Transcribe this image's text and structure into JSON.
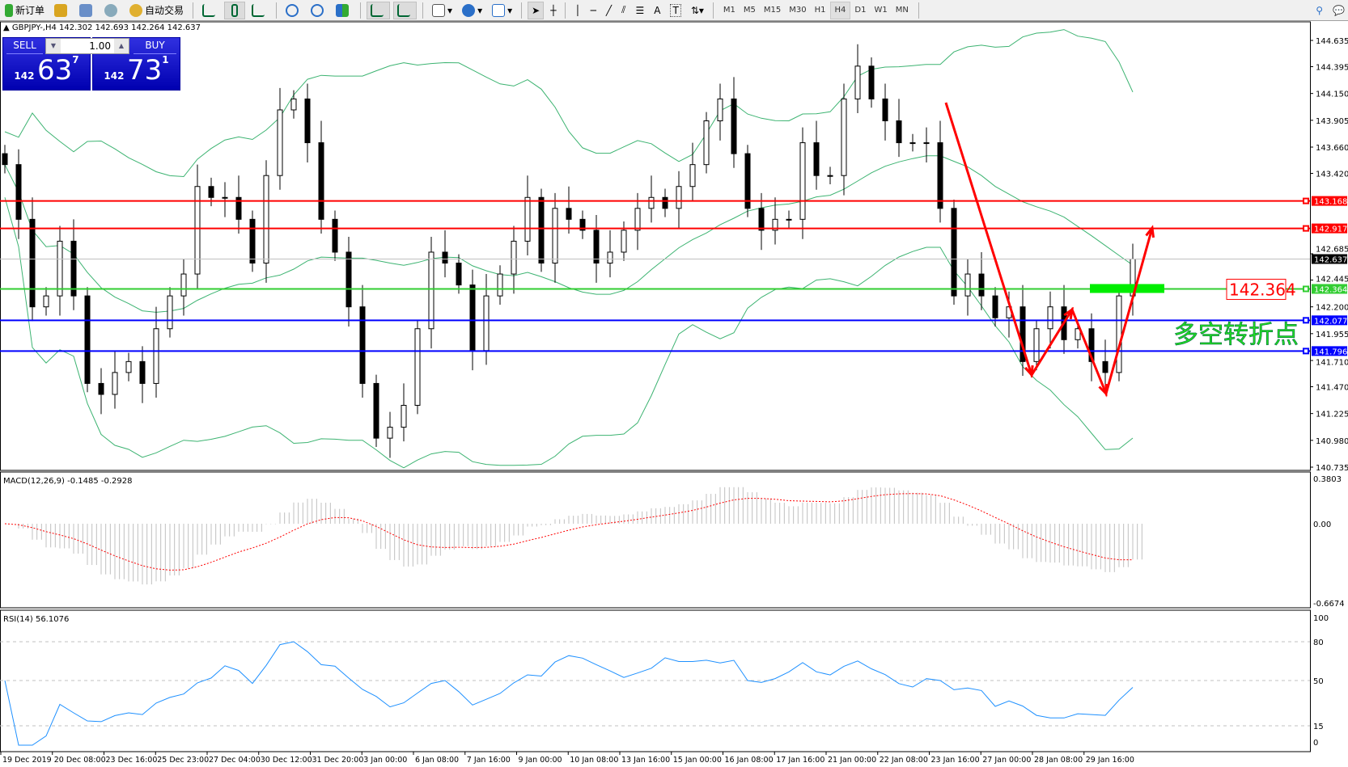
{
  "toolbar": {
    "new_order": "新订单",
    "auto_trading": "自动交易",
    "icons": [
      "new-order-icon",
      "experts-icon",
      "market-watch-icon",
      "signals-icon",
      "auto-trading-icon",
      "bar-chart-icon",
      "candlestick-icon",
      "line-chart-icon",
      "zoom-in-icon",
      "zoom-out-icon",
      "tile-windows-icon",
      "autoscroll-icon",
      "chart-shift-icon",
      "indicators-icon",
      "periods-icon",
      "templates-icon",
      "cursor-icon",
      "crosshair-icon",
      "vertical-line-icon",
      "horizontal-line-icon",
      "trendline-icon",
      "fibonacci-icon",
      "fibo-fan-icon",
      "text-icon",
      "text-label-icon",
      "arrows-icon",
      "search-icon",
      "chat-icon"
    ],
    "text_tool": "A",
    "label_tool": "T",
    "timeframes": [
      "M1",
      "M5",
      "M15",
      "M30",
      "H1",
      "H4",
      "D1",
      "W1",
      "MN"
    ],
    "active_timeframe": "H4"
  },
  "chart": {
    "title": "GBPJPY-,H4  142.302 142.693 142.264 142.637",
    "trade_panel": {
      "sell_label": "SELL",
      "buy_label": "BUY",
      "lot": "1.00",
      "sell_prefix": "142",
      "sell_big": "63",
      "sell_sup": "7",
      "buy_prefix": "142",
      "buy_big": "73",
      "buy_sup": "1"
    },
    "price_ticks": [
      "144.635",
      "144.395",
      "144.150",
      "143.905",
      "143.660",
      "143.420",
      "142.685",
      "142.445",
      "142.200",
      "141.955",
      "141.710",
      "141.470",
      "141.225",
      "140.980",
      "140.735"
    ],
    "levels": [
      {
        "price": "143.168",
        "color": "#ff0000"
      },
      {
        "price": "142.917",
        "color": "#ff0000"
      },
      {
        "price": "142.364",
        "color": "#32cd32"
      },
      {
        "price": "142.077",
        "color": "#0000ff"
      },
      {
        "price": "141.796",
        "color": "#0000ff"
      }
    ],
    "current_price": "142.637",
    "annotation_price": "142.364",
    "annotation_text": "多空转折点",
    "dates": [
      "19 Dec 2019",
      "20 Dec 08:00",
      "23 Dec 16:00",
      "25 Dec 23:00",
      "27 Dec 04:00",
      "30 Dec 12:00",
      "31 Dec 20:00",
      "3 Jan 00:00",
      "6 Jan 08:00",
      "7 Jan 16:00",
      "9 Jan 00:00",
      "10 Jan 08:00",
      "13 Jan 16:00",
      "15 Jan 00:00",
      "16 Jan 08:00",
      "17 Jan 16:00",
      "21 Jan 00:00",
      "22 Jan 08:00",
      "23 Jan 16:00",
      "27 Jan 00:00",
      "28 Jan 08:00",
      "29 Jan 16:00"
    ]
  },
  "macd": {
    "label": "MACD(12,26,9) -0.1485 -0.2928",
    "ticks": [
      "0.3803",
      "0.00",
      "-0.6674"
    ]
  },
  "rsi": {
    "label": "RSI(14) 56.1076",
    "ticks": [
      "100",
      "80",
      "50",
      "15",
      "0"
    ]
  },
  "chart_data": {
    "type": "candlestick",
    "symbol": "GBPJPY-",
    "timeframe": "H4",
    "ylim": [
      140.735,
      144.635
    ],
    "closes": [
      143.5,
      143.0,
      142.2,
      142.3,
      142.8,
      142.3,
      141.5,
      141.4,
      141.6,
      141.7,
      141.5,
      142.0,
      142.3,
      142.5,
      143.3,
      143.2,
      143.2,
      143.0,
      142.6,
      143.4,
      144.0,
      144.1,
      143.7,
      143.0,
      142.7,
      142.2,
      141.5,
      141.0,
      141.1,
      141.3,
      142.0,
      142.7,
      142.6,
      142.4,
      141.8,
      142.3,
      142.5,
      142.8,
      143.2,
      142.6,
      143.1,
      143.0,
      142.9,
      142.6,
      142.7,
      142.9,
      143.1,
      143.2,
      143.1,
      143.3,
      143.5,
      143.9,
      144.1,
      143.6,
      143.1,
      142.9,
      143.0,
      143.0,
      143.7,
      143.4,
      143.4,
      144.1,
      144.4,
      144.1,
      143.9,
      143.7,
      143.7,
      143.7,
      143.1,
      142.3,
      142.5,
      142.3,
      142.1,
      142.2,
      141.7,
      142.0,
      142.2,
      141.9,
      142.0,
      141.7,
      141.6,
      142.3,
      142.637
    ],
    "colors": {
      "bull_body": "#ffffff",
      "bear_body": "#000000",
      "bands": "#3cb371",
      "macd_hist": "#c0c0c0",
      "macd_signal": "#ff0000",
      "rsi": "#1e90ff",
      "arrows": "#ff0000"
    }
  }
}
